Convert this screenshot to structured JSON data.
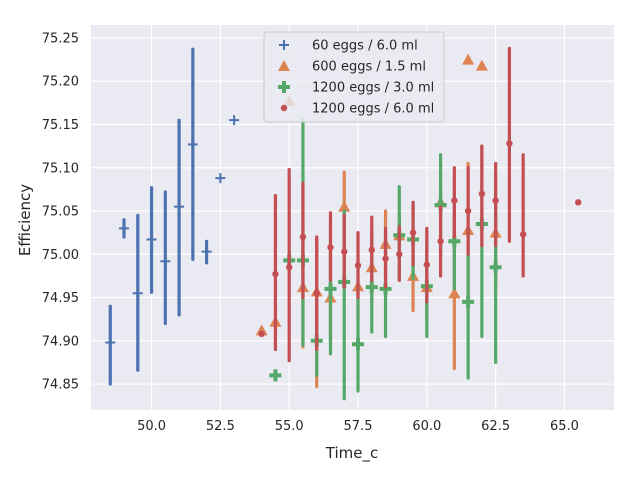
{
  "chart_data": {
    "type": "scatter",
    "title": "",
    "xlabel": "Time_c",
    "ylabel": "Efficiency",
    "xlim": [
      47.8,
      66.8
    ],
    "ylim": [
      74.82,
      75.265
    ],
    "x_ticks": [
      "50.0",
      "52.5",
      "55.0",
      "57.5",
      "60.0",
      "62.5",
      "65.0"
    ],
    "x_tick_values": [
      50.0,
      52.5,
      55.0,
      57.5,
      60.0,
      62.5,
      65.0
    ],
    "y_ticks": [
      "74.85",
      "74.90",
      "74.95",
      "75.00",
      "75.05",
      "75.10",
      "75.15",
      "75.20",
      "75.25"
    ],
    "y_tick_values": [
      74.85,
      74.9,
      74.95,
      75.0,
      75.05,
      75.1,
      75.15,
      75.2,
      75.25
    ],
    "grid": true,
    "legend_position": "top-center",
    "series": [
      {
        "name": "60 eggs / 6.0 ml",
        "marker": "plus",
        "color": "#4c72b0",
        "points": [
          {
            "x": 48.5,
            "y": 74.898,
            "low": 74.85,
            "high": 74.94
          },
          {
            "x": 49.0,
            "y": 75.03,
            "low": 75.02,
            "high": 75.04
          },
          {
            "x": 49.5,
            "y": 74.955,
            "low": 74.866,
            "high": 75.045
          },
          {
            "x": 50.0,
            "y": 75.017,
            "low": 74.956,
            "high": 75.077
          },
          {
            "x": 50.5,
            "y": 74.992,
            "low": 74.92,
            "high": 75.072
          },
          {
            "x": 51.0,
            "y": 75.055,
            "low": 74.93,
            "high": 75.155
          },
          {
            "x": 51.5,
            "y": 75.127,
            "low": 74.994,
            "high": 75.237
          },
          {
            "x": 52.0,
            "y": 75.003,
            "low": 74.99,
            "high": 75.015
          },
          {
            "x": 52.5,
            "y": 75.088,
            "low": 75.088,
            "high": 75.088
          },
          {
            "x": 53.0,
            "y": 75.155,
            "low": 75.155,
            "high": 75.155
          }
        ]
      },
      {
        "name": "600 eggs / 1.5 ml",
        "marker": "triangle",
        "color": "#dd8452",
        "points": [
          {
            "x": 54.0,
            "y": 74.912,
            "low": 74.912,
            "high": 74.912
          },
          {
            "x": 54.5,
            "y": 74.922,
            "low": 74.922,
            "high": 74.922
          },
          {
            "x": 55.0,
            "y": 75.177,
            "low": 75.177,
            "high": 75.177
          },
          {
            "x": 55.5,
            "y": 74.962,
            "low": 74.893,
            "high": 75.032
          },
          {
            "x": 56.0,
            "y": 74.957,
            "low": 74.847,
            "high": 75.017
          },
          {
            "x": 56.5,
            "y": 74.95,
            "low": 74.9,
            "high": 75.0
          },
          {
            "x": 57.0,
            "y": 75.055,
            "low": 75.01,
            "high": 75.095
          },
          {
            "x": 57.5,
            "y": 74.963,
            "low": 74.925,
            "high": 75.0
          },
          {
            "x": 58.0,
            "y": 74.985,
            "low": 74.945,
            "high": 75.025
          },
          {
            "x": 58.5,
            "y": 75.012,
            "low": 74.975,
            "high": 75.05
          },
          {
            "x": 59.0,
            "y": 75.022,
            "low": 75.0,
            "high": 75.045
          },
          {
            "x": 59.5,
            "y": 74.975,
            "low": 74.935,
            "high": 75.015
          },
          {
            "x": 60.0,
            "y": 74.962,
            "low": 74.925,
            "high": 75.0
          },
          {
            "x": 60.5,
            "y": 75.06,
            "low": 75.04,
            "high": 75.08
          },
          {
            "x": 61.0,
            "y": 74.955,
            "low": 74.868,
            "high": 75.045
          },
          {
            "x": 61.5,
            "y": 75.028,
            "low": 74.945,
            "high": 75.105
          },
          {
            "x": 62.0,
            "y": 75.218,
            "low": 75.218,
            "high": 75.218
          },
          {
            "x": 62.5,
            "y": 75.025,
            "low": 74.96,
            "high": 75.085
          },
          {
            "x": 61.5,
            "y": 75.225,
            "low": 75.225,
            "high": 75.225
          }
        ]
      },
      {
        "name": "1200 eggs / 3.0 ml",
        "marker": "plus-thick",
        "color": "#55a868",
        "points": [
          {
            "x": 54.5,
            "y": 74.86,
            "low": 74.86,
            "high": 74.86
          },
          {
            "x": 55.0,
            "y": 74.993,
            "low": 74.993,
            "high": 74.993
          },
          {
            "x": 55.5,
            "y": 74.993,
            "low": 74.895,
            "high": 75.155
          },
          {
            "x": 56.0,
            "y": 74.9,
            "low": 74.86,
            "high": 74.94
          },
          {
            "x": 56.5,
            "y": 74.96,
            "low": 74.885,
            "high": 75.03
          },
          {
            "x": 57.0,
            "y": 74.968,
            "low": 74.833,
            "high": 75.05
          },
          {
            "x": 57.5,
            "y": 74.896,
            "low": 74.842,
            "high": 74.96
          },
          {
            "x": 58.0,
            "y": 74.962,
            "low": 74.91,
            "high": 75.02
          },
          {
            "x": 58.5,
            "y": 74.96,
            "low": 74.905,
            "high": 75.02
          },
          {
            "x": 59.0,
            "y": 75.022,
            "low": 74.97,
            "high": 75.078
          },
          {
            "x": 59.5,
            "y": 75.017,
            "low": 74.972,
            "high": 75.06
          },
          {
            "x": 60.0,
            "y": 74.963,
            "low": 74.905,
            "high": 75.015
          },
          {
            "x": 60.5,
            "y": 75.057,
            "low": 75.0,
            "high": 75.115
          },
          {
            "x": 61.0,
            "y": 75.015,
            "low": 74.96,
            "high": 75.07
          },
          {
            "x": 61.5,
            "y": 74.945,
            "low": 74.857,
            "high": 75.03
          },
          {
            "x": 62.0,
            "y": 75.035,
            "low": 74.905,
            "high": 75.125
          },
          {
            "x": 62.5,
            "y": 74.985,
            "low": 74.875,
            "high": 75.06
          }
        ]
      },
      {
        "name": "1200 eggs / 6.0 ml",
        "marker": "dot",
        "color": "#c44e52",
        "points": [
          {
            "x": 54.0,
            "y": 74.908,
            "low": 74.908,
            "high": 74.908
          },
          {
            "x": 54.5,
            "y": 74.977,
            "low": 74.89,
            "high": 75.068
          },
          {
            "x": 55.0,
            "y": 74.985,
            "low": 74.877,
            "high": 75.098
          },
          {
            "x": 55.5,
            "y": 75.02,
            "low": 74.95,
            "high": 75.082
          },
          {
            "x": 56.0,
            "y": 74.955,
            "low": 74.89,
            "high": 75.02
          },
          {
            "x": 56.5,
            "y": 75.008,
            "low": 74.97,
            "high": 75.048
          },
          {
            "x": 57.0,
            "y": 75.003,
            "low": 74.962,
            "high": 75.045
          },
          {
            "x": 57.5,
            "y": 74.987,
            "low": 74.95,
            "high": 75.025
          },
          {
            "x": 58.0,
            "y": 75.005,
            "low": 74.97,
            "high": 75.043
          },
          {
            "x": 58.5,
            "y": 74.995,
            "low": 74.962,
            "high": 75.03
          },
          {
            "x": 59.0,
            "y": 75.0,
            "low": 74.97,
            "high": 75.032
          },
          {
            "x": 59.5,
            "y": 75.025,
            "low": 74.988,
            "high": 75.06
          },
          {
            "x": 60.0,
            "y": 74.988,
            "low": 74.945,
            "high": 75.03
          },
          {
            "x": 60.5,
            "y": 75.015,
            "low": 74.975,
            "high": 75.055
          },
          {
            "x": 61.0,
            "y": 75.062,
            "low": 75.02,
            "high": 75.1
          },
          {
            "x": 61.5,
            "y": 75.05,
            "low": 75.0,
            "high": 75.1
          },
          {
            "x": 62.0,
            "y": 75.07,
            "low": 75.01,
            "high": 75.125
          },
          {
            "x": 62.5,
            "y": 75.062,
            "low": 75.01,
            "high": 75.105
          },
          {
            "x": 63.0,
            "y": 75.128,
            "low": 75.015,
            "high": 75.238
          },
          {
            "x": 63.5,
            "y": 75.023,
            "low": 74.975,
            "high": 75.115
          },
          {
            "x": 65.5,
            "y": 75.06,
            "low": 75.06,
            "high": 75.06
          }
        ]
      }
    ]
  }
}
